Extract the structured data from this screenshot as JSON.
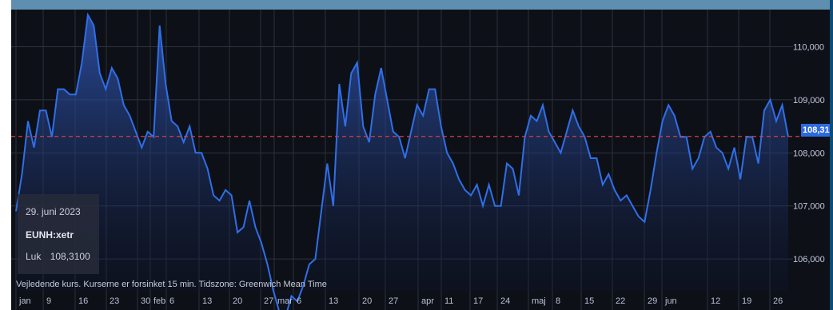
{
  "chart_data": {
    "type": "area",
    "ylim": [
      105.4,
      110.7
    ],
    "y_ticks": [
      {
        "value": 106.0,
        "label": "106,000"
      },
      {
        "value": 107.0,
        "label": "107,000"
      },
      {
        "value": 108.0,
        "label": "108,000"
      },
      {
        "value": 109.0,
        "label": "109,000"
      },
      {
        "value": 110.0,
        "label": "110,000"
      }
    ],
    "x_ticks": [
      "jan",
      "9",
      "16",
      "23",
      "30",
      "feb",
      "6",
      "13",
      "20",
      "27",
      "mar",
      "6",
      "13",
      "20",
      "27",
      "apr",
      "11",
      "17",
      "24",
      "maj",
      "8",
      "15",
      "22",
      "29",
      "jun",
      "12",
      "19",
      "26"
    ],
    "reference_line": {
      "value": 108.31,
      "label": "108,310"
    },
    "values": [
      106.9,
      107.6,
      108.6,
      108.1,
      108.8,
      108.8,
      108.3,
      109.2,
      109.2,
      109.1,
      109.1,
      109.7,
      110.6,
      110.4,
      109.5,
      109.2,
      109.6,
      109.4,
      108.9,
      108.7,
      108.4,
      108.1,
      108.4,
      108.3,
      110.4,
      109.3,
      108.6,
      108.5,
      108.2,
      108.5,
      108.0,
      108.0,
      107.7,
      107.2,
      107.1,
      107.3,
      107.2,
      106.5,
      106.6,
      107.1,
      106.6,
      106.3,
      105.9,
      105.4,
      105.0,
      104.9,
      105.3,
      105.2,
      105.5,
      105.9,
      106.0,
      106.9,
      107.8,
      107.0,
      109.3,
      108.5,
      109.5,
      109.7,
      108.5,
      108.2,
      109.1,
      109.6,
      109.0,
      108.4,
      108.3,
      107.9,
      108.4,
      108.9,
      108.7,
      109.2,
      109.2,
      108.5,
      108.0,
      107.8,
      107.5,
      107.3,
      107.2,
      107.4,
      107.0,
      107.4,
      107.0,
      107.0,
      107.8,
      107.7,
      107.2,
      108.3,
      108.7,
      108.6,
      108.9,
      108.4,
      108.2,
      108.0,
      108.4,
      108.8,
      108.5,
      108.3,
      107.9,
      107.9,
      107.4,
      107.6,
      107.3,
      107.1,
      107.2,
      107.0,
      106.8,
      106.7,
      107.3,
      108.0,
      108.6,
      108.9,
      108.7,
      108.3,
      108.3,
      107.7,
      107.9,
      108.3,
      108.4,
      108.1,
      108.0,
      107.7,
      108.1,
      107.5,
      108.3,
      108.3,
      107.8,
      108.8,
      109.0,
      108.6,
      108.9,
      108.3
    ]
  },
  "tooltip": {
    "date": "29. juni 2023",
    "symbol": "EUNH:xetr",
    "close_label": "Luk",
    "close_value": "108,3100"
  },
  "footnote": "Vejledende kurs. Kurserne er forsinket 15 min.   Tidszone: Greenwich Mean Time",
  "colors": {
    "background": "#0d1017",
    "line": "#2f6fe8",
    "area_top": "#2a4fb5",
    "area_bottom": "#0b1024",
    "reference": "#d34242",
    "grid": "#2e3340",
    "badge": "#2d6ae0"
  }
}
